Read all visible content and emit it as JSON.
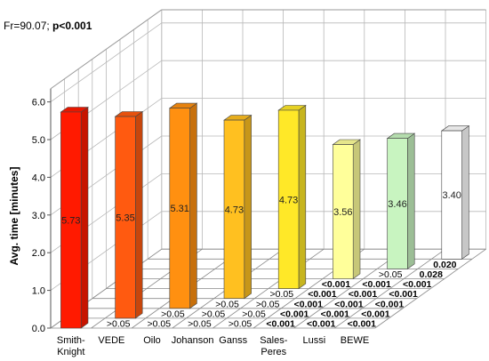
{
  "header": {
    "stat_prefix": "Fr=90.07; ",
    "stat_sig": "p<0.001"
  },
  "chart_data": {
    "type": "bar",
    "categories": [
      "Smith-Knight",
      "VEDE",
      "Oilo",
      "Johanson",
      "Ganss",
      "Sales-Peres",
      "Lussi",
      "BEWE"
    ],
    "category_labels": [
      [
        "Smith-",
        "Knight"
      ],
      [
        "VEDE"
      ],
      [
        "Oilo"
      ],
      [
        "Johanson"
      ],
      [
        "Ganss"
      ],
      [
        "Sales-",
        "Peres"
      ],
      [
        "Lussi"
      ],
      [
        "BEWE"
      ]
    ],
    "values": [
      5.73,
      5.35,
      5.31,
      4.73,
      4.73,
      3.56,
      3.46,
      3.4
    ],
    "bar_labels": [
      "5.73",
      "5.35",
      "5.31",
      "4.73",
      "4.73",
      "3.56",
      "3.46",
      "3.40"
    ],
    "ylabel": "Avg. time [minutes]",
    "ylim": [
      0,
      6
    ],
    "y_ticks": [
      "0.0",
      "1.0",
      "2.0",
      "3.0",
      "4.0",
      "5.0",
      "6.0"
    ],
    "grid": true,
    "bar_colors": [
      "#ff1a00",
      "#ff5a10",
      "#ff9010",
      "#ffc020",
      "#ffe828",
      "#ffff9a",
      "#c8f4c0",
      "#ffffff"
    ],
    "p_values": [
      [
        {
          "t": ">0.05",
          "b": false
        },
        {
          "t": ">0.05",
          "b": false
        },
        {
          "t": ">0.05",
          "b": false
        },
        {
          "t": ">0.05",
          "b": false
        },
        {
          "t": "<0.001",
          "b": true
        },
        {
          "t": "<0.001",
          "b": true
        },
        {
          "t": "<0.001",
          "b": true
        }
      ],
      [
        {
          "t": ">0.05",
          "b": false
        },
        {
          "t": ">0.05",
          "b": false
        },
        {
          "t": ">0.05",
          "b": false
        },
        {
          "t": "<0.001",
          "b": true
        },
        {
          "t": "<0.001",
          "b": true
        },
        {
          "t": "<0.001",
          "b": true
        }
      ],
      [
        {
          "t": ">0.05",
          "b": false
        },
        {
          "t": ">0.05",
          "b": false
        },
        {
          "t": "<0.001",
          "b": true
        },
        {
          "t": "<0.001",
          "b": true
        },
        {
          "t": "<0.001",
          "b": true
        }
      ],
      [
        {
          "t": ">0.05",
          "b": false
        },
        {
          "t": "<0.001",
          "b": true
        },
        {
          "t": "<0.001",
          "b": true
        },
        {
          "t": "<0.001",
          "b": true
        }
      ],
      [
        {
          "t": "<0.001",
          "b": true
        },
        {
          "t": "<0.001",
          "b": true
        },
        {
          "t": "<0.001",
          "b": true
        }
      ],
      [
        {
          "t": ">0.05",
          "b": false
        },
        {
          "t": "0.028",
          "b": true
        }
      ],
      [
        {
          "t": "0.020",
          "b": true
        }
      ]
    ]
  }
}
